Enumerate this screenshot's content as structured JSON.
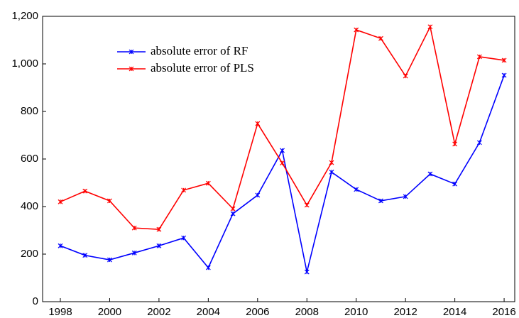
{
  "chart_data": {
    "type": "line",
    "x": [
      1998,
      1999,
      2000,
      2001,
      2002,
      2003,
      2004,
      2005,
      2006,
      2007,
      2008,
      2009,
      2010,
      2011,
      2012,
      2013,
      2014,
      2015,
      2016
    ],
    "series": [
      {
        "name": "absolute error of RF",
        "color": "#0000ff",
        "values": [
          235,
          195,
          176,
          205,
          235,
          268,
          143,
          370,
          448,
          636,
          125,
          545,
          472,
          424,
          442,
          537,
          495,
          669,
          952
        ]
      },
      {
        "name": "absolute error of PLS",
        "color": "#ff0000",
        "values": [
          420,
          465,
          424,
          310,
          304,
          469,
          498,
          391,
          749,
          583,
          406,
          585,
          1143,
          1107,
          949,
          1156,
          663,
          1030,
          1015
        ]
      }
    ],
    "xlim": [
      1997.28,
      2016.43
    ],
    "xticks": [
      1998,
      2000,
      2002,
      2004,
      2006,
      2008,
      2010,
      2012,
      2014,
      2016
    ],
    "ylim": [
      0,
      1200
    ],
    "yticks": [
      0,
      200,
      400,
      600,
      800,
      {
        "value": 1000,
        "label": "1,000"
      },
      {
        "value": 1200,
        "label": "1,200"
      }
    ],
    "legend": "upper-left"
  }
}
